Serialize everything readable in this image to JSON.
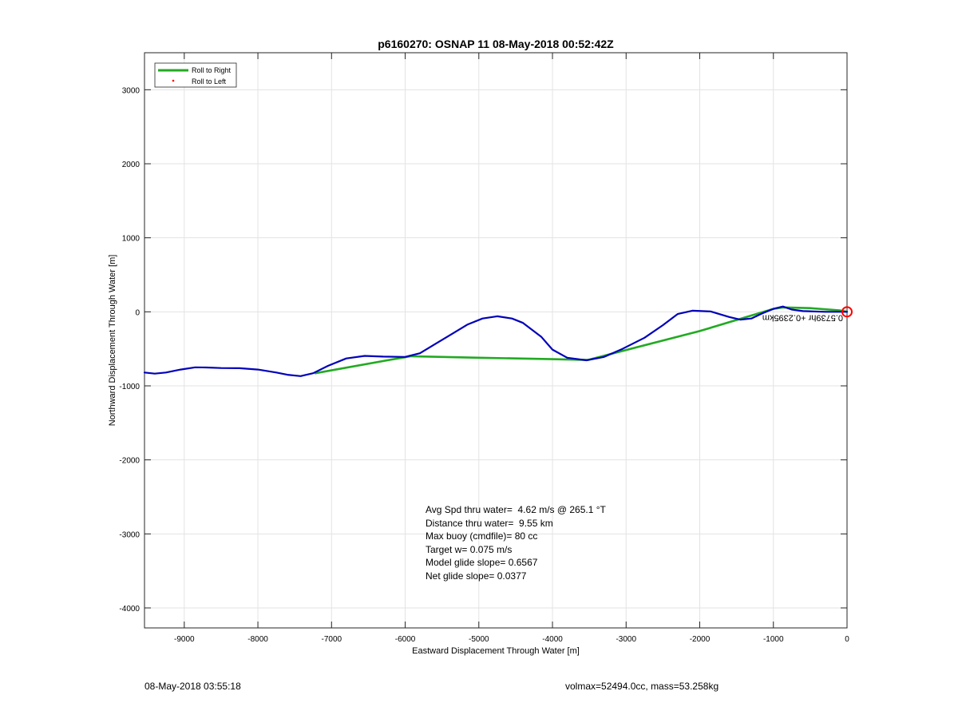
{
  "chart_data": {
    "type": "line",
    "title": "p6160270: OSNAP 11 08-May-2018 00:52:42Z",
    "xlabel": "Eastward Displacement Through Water [m]",
    "ylabel": "Northward Displacement Through Water [m]",
    "xlim": [
      -9540,
      0
    ],
    "ylim": [
      -4270,
      3500
    ],
    "xticks": [
      -9000,
      -8000,
      -7000,
      -6000,
      -5000,
      -4000,
      -3000,
      -2000,
      -1000,
      0
    ],
    "yticks": [
      -4000,
      -3000,
      -2000,
      -1000,
      0,
      1000,
      2000,
      3000
    ],
    "grid": true,
    "legend_position": "top-left",
    "series": [
      {
        "name": "Roll to Right",
        "color": "#22aa22",
        "points": [
          [
            -7220,
            -830
          ],
          [
            -6220,
            -650
          ],
          [
            -5920,
            -600
          ],
          [
            -5000,
            -620
          ],
          [
            -4000,
            -640
          ],
          [
            -3520,
            -650
          ],
          [
            -3250,
            -580
          ],
          [
            -2000,
            -260
          ],
          [
            -1000,
            40
          ],
          [
            -870,
            60
          ],
          [
            -500,
            50
          ],
          [
            -100,
            20
          ],
          [
            0,
            0
          ]
        ]
      },
      {
        "name": "Roll to Left",
        "color": "#ff0000",
        "points": []
      },
      {
        "name": "",
        "color": "#0000bb",
        "points": [
          [
            -9540,
            -820
          ],
          [
            -9400,
            -835
          ],
          [
            -9250,
            -820
          ],
          [
            -9050,
            -780
          ],
          [
            -8850,
            -750
          ],
          [
            -8700,
            -752
          ],
          [
            -8500,
            -760
          ],
          [
            -8250,
            -762
          ],
          [
            -8000,
            -780
          ],
          [
            -7750,
            -820
          ],
          [
            -7600,
            -850
          ],
          [
            -7420,
            -868
          ],
          [
            -7250,
            -830
          ],
          [
            -7050,
            -730
          ],
          [
            -6800,
            -630
          ],
          [
            -6550,
            -595
          ],
          [
            -6300,
            -605
          ],
          [
            -6000,
            -610
          ],
          [
            -5800,
            -560
          ],
          [
            -5600,
            -440
          ],
          [
            -5350,
            -290
          ],
          [
            -5150,
            -170
          ],
          [
            -4950,
            -90
          ],
          [
            -4750,
            -60
          ],
          [
            -4550,
            -90
          ],
          [
            -4400,
            -150
          ],
          [
            -4150,
            -340
          ],
          [
            -4000,
            -510
          ],
          [
            -3800,
            -620
          ],
          [
            -3540,
            -655
          ],
          [
            -3300,
            -610
          ],
          [
            -3050,
            -500
          ],
          [
            -2750,
            -350
          ],
          [
            -2500,
            -180
          ],
          [
            -2300,
            -30
          ],
          [
            -2100,
            15
          ],
          [
            -1850,
            5
          ],
          [
            -1600,
            -70
          ],
          [
            -1450,
            -105
          ],
          [
            -1300,
            -90
          ],
          [
            -1150,
            -20
          ],
          [
            -1000,
            40
          ],
          [
            -870,
            72
          ],
          [
            -750,
            30
          ],
          [
            -600,
            10
          ],
          [
            -300,
            0
          ],
          [
            -100,
            0
          ],
          [
            0,
            0
          ]
        ]
      }
    ],
    "marker": {
      "x": 0,
      "y": 0,
      "color": "#ff0000"
    },
    "annotation_rotated": "0.5739hr +0.2395km"
  },
  "stats": {
    "line1": "Avg Spd thru water=  4.62 m/s @ 265.1 °T",
    "line2": "Distance thru water=  9.55 km",
    "line3": "Max buoy (cmdfile)= 80 cc",
    "line4": "Target w= 0.075 m/s",
    "line5": "Model glide slope= 0.6567",
    "line6": "Net glide slope= 0.0377"
  },
  "footer": {
    "left": "08-May-2018 03:55:18",
    "right": "volmax=52494.0cc, mass=53.258kg"
  }
}
